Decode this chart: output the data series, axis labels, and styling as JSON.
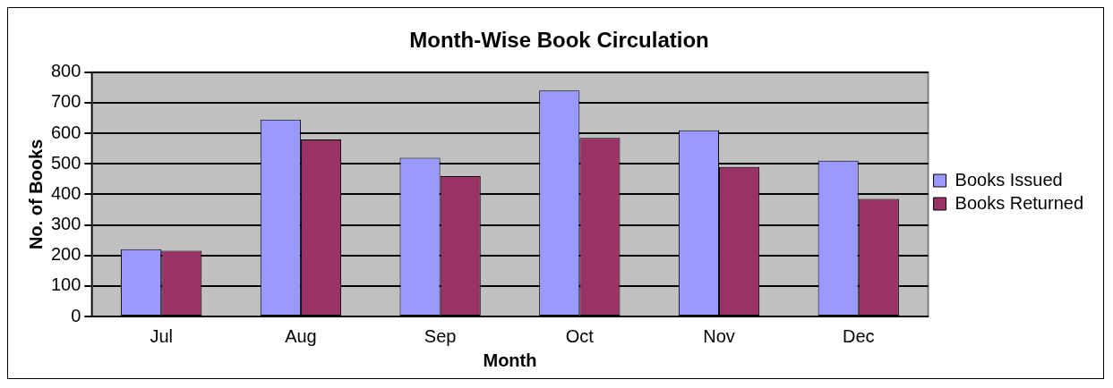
{
  "chart_data": {
    "type": "bar",
    "title": "Month-Wise Book Circulation",
    "xlabel": "Month",
    "ylabel": "No. of Books",
    "categories": [
      "Jul",
      "Aug",
      "Sep",
      "Oct",
      "Nov",
      "Dec"
    ],
    "series": [
      {
        "name": "Books Issued",
        "color": "#9999ff",
        "values": [
          220,
          645,
          520,
          740,
          610,
          510
        ]
      },
      {
        "name": "Books Returned",
        "color": "#993366",
        "values": [
          215,
          580,
          460,
          585,
          490,
          385
        ]
      }
    ],
    "ylim": [
      0,
      800
    ],
    "yticks": [
      0,
      100,
      200,
      300,
      400,
      500,
      600,
      700,
      800
    ],
    "grid": "y",
    "legend": "right"
  }
}
